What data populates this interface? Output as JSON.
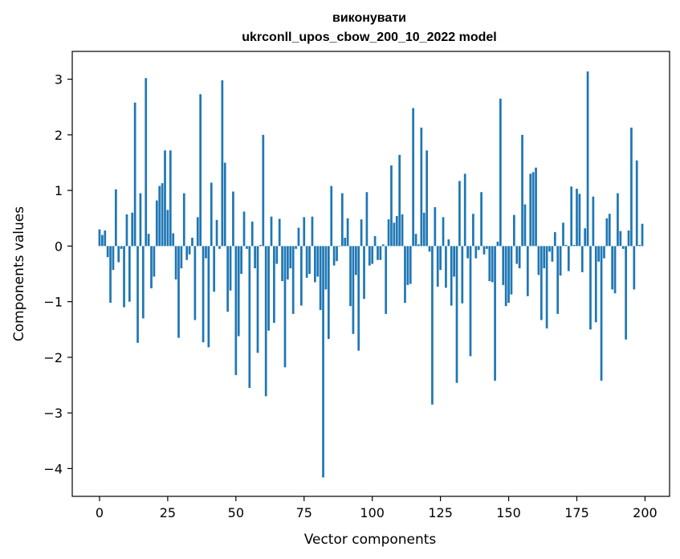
{
  "chart_data": {
    "type": "bar",
    "title_line1": "виконувати",
    "title_line2": "ukrconll_upos_cbow_200_10_2022 model",
    "xlabel": "Vector components",
    "ylabel": "Components values",
    "xlim": [
      -10,
      209
    ],
    "ylim": [
      -4.5,
      3.5
    ],
    "xticks": [
      0,
      25,
      50,
      75,
      100,
      125,
      150,
      175,
      200
    ],
    "yticks": [
      -4,
      -3,
      -2,
      -1,
      0,
      1,
      2,
      3
    ],
    "ytick_labels": [
      "−4",
      "−3",
      "−2",
      "−1",
      "0",
      "1",
      "2",
      "3"
    ],
    "bar_color": "#1f77b4",
    "grid": false,
    "values": [
      0.3,
      0.2,
      0.28,
      -0.2,
      -1.02,
      -0.43,
      1.02,
      -0.29,
      -0.05,
      -1.1,
      0.57,
      -1.0,
      0.6,
      2.58,
      -1.74,
      0.95,
      -1.3,
      3.02,
      0.22,
      -0.76,
      -0.55,
      0.82,
      1.08,
      1.13,
      1.72,
      0.65,
      1.72,
      0.23,
      -0.6,
      -1.65,
      -0.4,
      0.95,
      -0.25,
      -0.15,
      0.15,
      -1.33,
      0.52,
      2.73,
      -1.73,
      -0.22,
      -1.82,
      1.14,
      -0.82,
      0.47,
      -0.05,
      2.98,
      1.5,
      -1.18,
      -0.8,
      0.98,
      -2.32,
      -1.62,
      -0.5,
      0.62,
      -0.05,
      -2.55,
      0.44,
      -0.4,
      -1.92,
      0.02,
      2.0,
      -2.7,
      -1.52,
      0.53,
      -1.38,
      -0.32,
      0.49,
      -0.63,
      -2.18,
      -0.6,
      -0.4,
      -1.22,
      -0.05,
      0.33,
      -1.07,
      0.52,
      -0.57,
      -0.5,
      0.53,
      -0.65,
      -0.55,
      -1.15,
      -4.16,
      -0.78,
      -1.67,
      1.08,
      -0.35,
      -0.27,
      0.0,
      0.95,
      0.15,
      0.5,
      -1.08,
      -1.58,
      -0.52,
      -1.88,
      0.48,
      -0.95,
      0.97,
      -0.35,
      -0.32,
      0.18,
      -0.25,
      -0.25,
      0.03,
      -1.22,
      0.48,
      1.45,
      0.42,
      0.54,
      1.64,
      0.57,
      -1.02,
      -0.7,
      -0.68,
      2.48,
      0.22,
      0.03,
      2.13,
      0.6,
      1.72,
      -0.1,
      -2.85,
      0.7,
      -0.73,
      -0.43,
      0.52,
      -0.75,
      0.12,
      -1.07,
      -0.55,
      -2.46,
      1.17,
      -1.03,
      1.3,
      -0.22,
      -1.98,
      0.58,
      -0.22,
      -0.07,
      0.97,
      -0.15,
      -0.05,
      -0.63,
      -0.65,
      -2.42,
      0.08,
      2.65,
      -0.7,
      -1.08,
      -1.02,
      -0.87,
      0.56,
      -0.32,
      -0.4,
      2.0,
      0.75,
      -0.9,
      1.3,
      1.33,
      1.41,
      -0.52,
      -1.33,
      -0.4,
      -1.48,
      -0.1,
      -0.28,
      0.25,
      -1.22,
      -0.53,
      0.42,
      0.02,
      -0.45,
      1.07,
      0.02,
      1.03,
      0.94,
      -0.47,
      0.32,
      3.14,
      -1.5,
      0.89,
      -1.37,
      -0.28,
      -2.42,
      -0.22,
      0.5,
      0.58,
      -0.78,
      -0.85,
      0.95,
      0.27,
      -0.05,
      -1.68,
      0.28,
      2.13,
      -0.78,
      1.54,
      0.02,
      0.4
    ]
  }
}
